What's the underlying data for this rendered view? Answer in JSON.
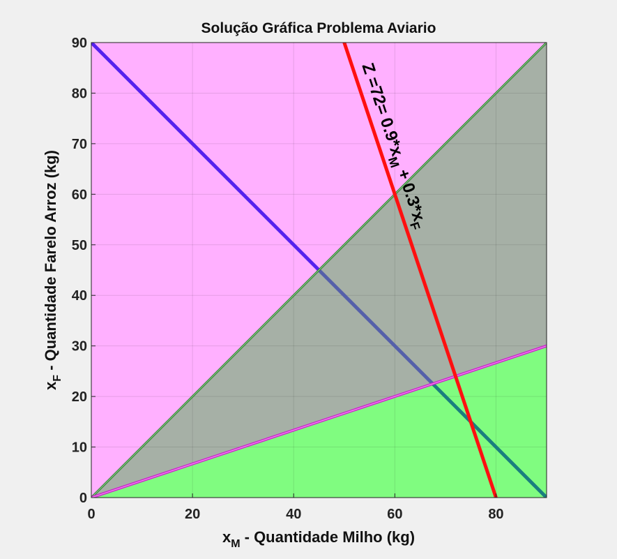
{
  "chart_data": {
    "type": "area",
    "title": "Solução Gráfica Problema Aviario",
    "xlabel": {
      "var": "x",
      "sub": "M",
      "text": " - Quantidade Milho (kg)"
    },
    "ylabel": {
      "var": "x",
      "sub": "F",
      "text": " - Quantidade Farelo Arroz (kg)"
    },
    "xlim": [
      0,
      90
    ],
    "ylim": [
      0,
      90
    ],
    "xticks": [
      0,
      20,
      40,
      60,
      80
    ],
    "yticks": [
      0,
      10,
      20,
      30,
      40,
      50,
      60,
      70,
      80,
      90
    ],
    "grid": true,
    "regions": [
      {
        "name": "xF >= xM",
        "color": "#ffb0ff",
        "polygon": [
          [
            0,
            0
          ],
          [
            90,
            90
          ],
          [
            0,
            90
          ]
        ]
      },
      {
        "name": "xM/3 <= xF <= xM",
        "color": "#a6b0a6",
        "polygon": [
          [
            0,
            0
          ],
          [
            90,
            90
          ],
          [
            90,
            30
          ]
        ]
      },
      {
        "name": "xF <= xM/3",
        "color": "#80fc80",
        "polygon": [
          [
            0,
            0
          ],
          [
            90,
            30
          ],
          [
            90,
            0
          ]
        ]
      }
    ],
    "lines": [
      {
        "name": "xM + xF = 90",
        "color": "#5522ee",
        "color_in_feasible": "#5560aa",
        "color_in_lower": "#1a7f7f",
        "x": [
          0,
          90
        ],
        "y": [
          90,
          0
        ]
      },
      {
        "name": "xF = xM",
        "color": "#2e7d2e",
        "x": [
          0,
          90
        ],
        "y": [
          0,
          90
        ]
      },
      {
        "name": "xF = xM/3",
        "color": "#cc22cc",
        "x": [
          0,
          90
        ],
        "y": [
          0,
          30
        ]
      },
      {
        "name": "Z = 72",
        "color": "#ff1010",
        "x": [
          50,
          80
        ],
        "y": [
          90,
          0
        ]
      }
    ],
    "annotation": {
      "text_parts": [
        {
          "t": "Z =72= 0.9*x"
        },
        {
          "t": "M",
          "sub": true
        },
        {
          "t": " + 0.3*x"
        },
        {
          "t": "F",
          "sub": true
        }
      ],
      "x": 53.5,
      "y": 85.5,
      "rotation_deg": 71.5
    }
  }
}
